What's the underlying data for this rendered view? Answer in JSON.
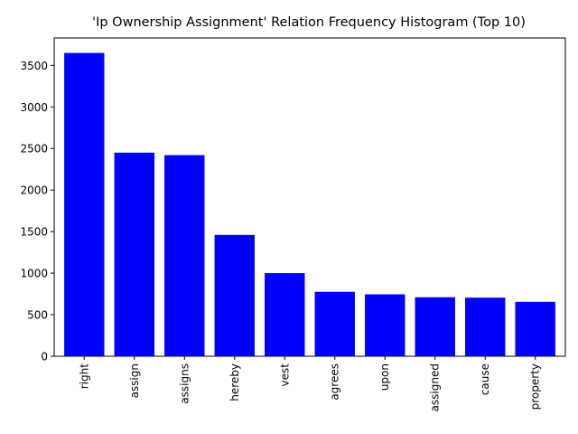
{
  "chart_data": {
    "type": "bar",
    "title": "'Ip Ownership Assignment' Relation Frequency Histogram (Top 10)",
    "xlabel": "",
    "ylabel": "",
    "categories": [
      "right",
      "assign",
      "assigns",
      "hereby",
      "vest",
      "agrees",
      "upon",
      "assigned",
      "cause",
      "property"
    ],
    "values": [
      3650,
      2450,
      2420,
      1460,
      1000,
      775,
      745,
      710,
      705,
      655
    ],
    "ylim": [
      0,
      3830
    ],
    "yticks": [
      0,
      500,
      1000,
      1500,
      2000,
      2500,
      3000,
      3500
    ],
    "ytick_labels": [
      "0",
      "500",
      "1000",
      "1500",
      "2000",
      "2500",
      "3000",
      "3500"
    ],
    "bar_color": "#0000ff",
    "grid": false,
    "legend": "none"
  }
}
